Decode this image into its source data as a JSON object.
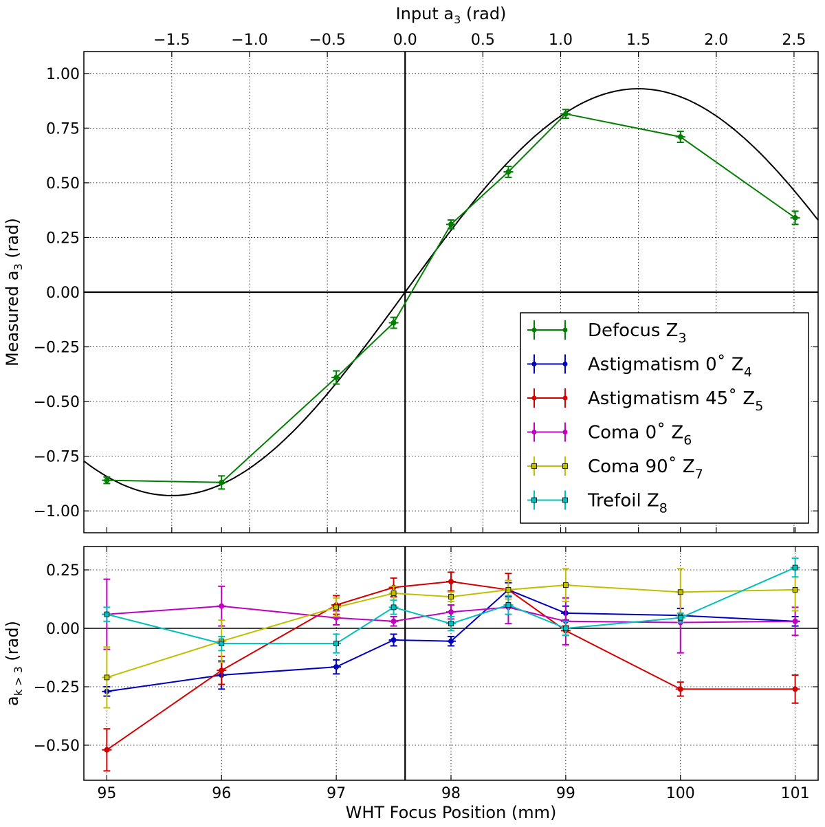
{
  "chart_data": [
    {
      "type": "line",
      "id": "top",
      "title": "",
      "xlabel": "WHT Focus Position (mm)",
      "ylabel": "Measured a_3 (rad)",
      "ylabel_base": "Measured a",
      "ylabel_sub": "3",
      "ylabel_tail": "  (rad)",
      "xlim": [
        94.8,
        101.2
      ],
      "ylim": [
        -1.1,
        1.1
      ],
      "yticks": [
        1.0,
        0.75,
        0.5,
        0.25,
        0.0,
        -0.25,
        -0.5,
        -0.75,
        -1.0
      ],
      "ytick_labels": [
        "1.00",
        "0.75",
        "0.50",
        "0.25",
        "0.00",
        "−0.25",
        "−0.50",
        "−0.75",
        "−1.00"
      ],
      "top_axis": {
        "label_base": "Input a",
        "label_sub": "3",
        "label_tail": "  (rad)",
        "ticks": [
          -1.5,
          -1.0,
          -0.5,
          0.0,
          0.5,
          1.0,
          1.5,
          2.0,
          2.5
        ],
        "tick_labels": [
          "−1.5",
          "−1.0",
          "−0.5",
          "0.0",
          "0.5",
          "1.0",
          "1.5",
          "2.0",
          "2.5"
        ],
        "focus_at_zero": 97.6,
        "rad_per_mm": 0.7375
      },
      "zero_focus": 97.6,
      "model_curve": {
        "amplitude": 0.93,
        "scale": 1.047,
        "color": "#000000"
      },
      "series": [
        {
          "name": "Defocus Z_3",
          "color": "#007f00",
          "x": [
            95,
            96,
            97,
            97.5,
            98,
            98.5,
            99,
            100,
            101
          ],
          "y": [
            -0.86,
            -0.87,
            -0.39,
            -0.14,
            0.31,
            0.55,
            0.815,
            0.71,
            0.34
          ],
          "yerr": [
            0.015,
            0.03,
            0.03,
            0.025,
            0.02,
            0.025,
            0.02,
            0.025,
            0.03
          ]
        }
      ],
      "legend": {
        "position": "lower-right",
        "entries": [
          {
            "label": "Defocus Z",
            "sub": "3",
            "color": "#007f00",
            "marker": "dot"
          },
          {
            "label": "Astigmatism 0˚ Z",
            "sub": "4",
            "color": "#0000bf",
            "marker": "dot"
          },
          {
            "label": "Astigmatism 45˚ Z",
            "sub": "5",
            "color": "#d40000",
            "marker": "dot"
          },
          {
            "label": "Coma 0˚ Z",
            "sub": "6",
            "color": "#bf00bf",
            "marker": "dot"
          },
          {
            "label": "Coma 90˚ Z",
            "sub": "7",
            "color": "#bfbf00",
            "marker": "square"
          },
          {
            "label": "Trefoil Z",
            "sub": "8",
            "color": "#00bfbf",
            "marker": "square"
          }
        ]
      }
    },
    {
      "type": "line",
      "id": "bottom",
      "xlabel": "WHT Focus Position (mm)",
      "ylabel_base": "a",
      "ylabel_sub": "k > 3",
      "ylabel_tail": "  (rad)",
      "xlim": [
        94.8,
        101.2
      ],
      "ylim": [
        -0.65,
        0.35
      ],
      "xticks": [
        95,
        96,
        97,
        98,
        99,
        100,
        101
      ],
      "xtick_labels": [
        "95",
        "96",
        "97",
        "98",
        "99",
        "100",
        "101"
      ],
      "yticks": [
        0.25,
        0.0,
        -0.25,
        -0.5
      ],
      "ytick_labels": [
        "0.25",
        "0.00",
        "−0.25",
        "−0.50"
      ],
      "zero_focus": 97.6,
      "series": [
        {
          "name": "Astigmatism 0˚ Z_4",
          "color": "#0000bf",
          "marker": "dot",
          "x": [
            95,
            96,
            97,
            97.5,
            98,
            98.5,
            99,
            100,
            101
          ],
          "y": [
            -0.27,
            -0.2,
            -0.165,
            -0.05,
            -0.055,
            0.165,
            0.065,
            0.055,
            0.03
          ],
          "yerr": [
            0.02,
            0.06,
            0.03,
            0.025,
            0.02,
            0.03,
            0.03,
            0.03,
            0.02
          ]
        },
        {
          "name": "Astigmatism 45˚ Z_5",
          "color": "#d40000",
          "marker": "dot",
          "x": [
            95,
            96,
            97,
            97.5,
            98,
            98.5,
            99,
            100,
            101
          ],
          "y": [
            -0.52,
            -0.18,
            0.1,
            0.175,
            0.2,
            0.165,
            -0.01,
            -0.26,
            -0.26
          ],
          "yerr": [
            0.09,
            0.06,
            0.04,
            0.04,
            0.04,
            0.07,
            0.02,
            0.03,
            0.06
          ]
        },
        {
          "name": "Coma 0˚ Z_6",
          "color": "#bf00bf",
          "marker": "dot",
          "x": [
            95,
            96,
            97,
            97.5,
            98,
            98.5,
            99,
            100,
            101
          ],
          "y": [
            0.06,
            0.095,
            0.045,
            0.03,
            0.07,
            0.09,
            0.03,
            0.025,
            0.03
          ],
          "yerr": [
            0.15,
            0.085,
            0.03,
            0.02,
            0.03,
            0.07,
            0.1,
            0.13,
            0.06
          ]
        },
        {
          "name": "Coma 90˚ Z_7",
          "color": "#bfbf00",
          "marker": "square",
          "x": [
            95,
            96,
            97,
            97.5,
            98,
            98.5,
            99,
            100,
            101
          ],
          "y": [
            -0.21,
            -0.055,
            0.09,
            0.15,
            0.135,
            0.165,
            0.185,
            0.155,
            0.165
          ],
          "yerr": [
            0.13,
            0.09,
            0.04,
            0.03,
            0.02,
            0.04,
            0.07,
            0.1,
            0.09
          ]
        },
        {
          "name": "Trefoil Z_8",
          "color": "#00bfbf",
          "marker": "square",
          "x": [
            95,
            96,
            97,
            97.5,
            98,
            98.5,
            99,
            100,
            101
          ],
          "y": [
            0.06,
            -0.065,
            -0.065,
            0.09,
            0.02,
            0.1,
            0.0,
            0.045,
            0.26
          ],
          "yerr": [
            0.03,
            0.03,
            0.04,
            0.03,
            0.03,
            0.04,
            0.03,
            0.02,
            0.04
          ]
        }
      ]
    }
  ]
}
